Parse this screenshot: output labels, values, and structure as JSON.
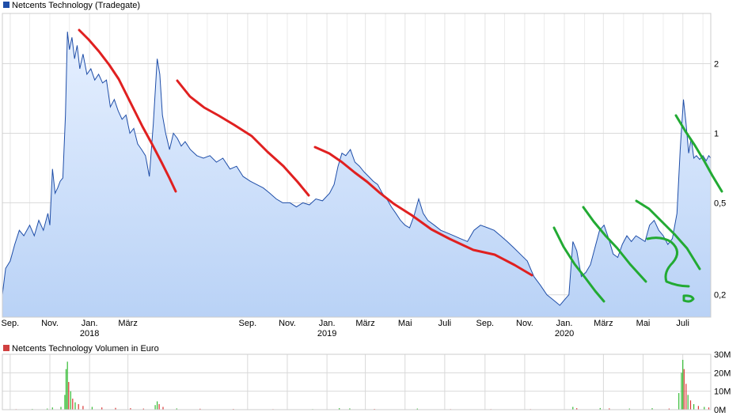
{
  "chart_data": [
    {
      "type": "area",
      "title": "Netcents Technology (Tradegate)",
      "legend": "Netcents Technology (Tradegate)",
      "legend_placement": "top-left",
      "colors": {
        "line": "#1f4ea8",
        "fill_top": "#e6f0ff",
        "fill_bottom": "#b9d2f6",
        "legend_swatch": "#1f4ea8",
        "grid": "#d9d9d9",
        "annotation_red": "#e02020",
        "annotation_green": "#22aa33"
      },
      "y_scale": "log",
      "ylim": [
        0.16,
        3.3
      ],
      "yticks": [
        {
          "value": 2,
          "label": "2"
        },
        {
          "value": 1,
          "label": "1"
        },
        {
          "value": 0.5,
          "label": "0,5"
        },
        {
          "value": 0.2,
          "label": "0,2"
        }
      ],
      "xlim": [
        "2017-08-20",
        "2020-08-13"
      ],
      "xticks": [
        {
          "date": "2017-09-01",
          "label": "Sep."
        },
        {
          "date": "2017-11-01",
          "label": "Nov."
        },
        {
          "date": "2018-01-01",
          "label": "Jan.",
          "year": "2018"
        },
        {
          "date": "2018-03-01",
          "label": "März"
        },
        {
          "date": "2018-09-01",
          "label": "Sep."
        },
        {
          "date": "2018-11-01",
          "label": "Nov."
        },
        {
          "date": "2019-01-01",
          "label": "Jan.",
          "year": "2019"
        },
        {
          "date": "2019-03-01",
          "label": "März"
        },
        {
          "date": "2019-05-01",
          "label": "Mai"
        },
        {
          "date": "2019-07-01",
          "label": "Juli"
        },
        {
          "date": "2019-09-01",
          "label": "Sep."
        },
        {
          "date": "2019-11-01",
          "label": "Nov."
        },
        {
          "date": "2020-01-01",
          "label": "Jan.",
          "year": "2020"
        },
        {
          "date": "2020-03-01",
          "label": "März"
        },
        {
          "date": "2020-05-01",
          "label": "Mai"
        },
        {
          "date": "2020-07-01",
          "label": "Juli"
        }
      ],
      "grid": true,
      "series": [
        {
          "name": "Netcents Technology (Tradegate)",
          "points": [
            [
              "2017-08-20",
              0.2
            ],
            [
              "2017-08-25",
              0.26
            ],
            [
              "2017-09-01",
              0.28
            ],
            [
              "2017-09-08",
              0.33
            ],
            [
              "2017-09-15",
              0.38
            ],
            [
              "2017-09-22",
              0.36
            ],
            [
              "2017-10-01",
              0.4
            ],
            [
              "2017-10-08",
              0.36
            ],
            [
              "2017-10-15",
              0.42
            ],
            [
              "2017-10-22",
              0.38
            ],
            [
              "2017-10-29",
              0.45
            ],
            [
              "2017-11-01",
              0.4
            ],
            [
              "2017-11-05",
              0.7
            ],
            [
              "2017-11-09",
              0.55
            ],
            [
              "2017-11-13",
              0.58
            ],
            [
              "2017-11-17",
              0.62
            ],
            [
              "2017-11-21",
              0.64
            ],
            [
              "2017-11-25",
              1.2
            ],
            [
              "2017-11-28",
              2.75
            ],
            [
              "2017-12-01",
              2.3
            ],
            [
              "2017-12-05",
              2.6
            ],
            [
              "2017-12-09",
              2.1
            ],
            [
              "2017-12-13",
              2.4
            ],
            [
              "2017-12-17",
              1.9
            ],
            [
              "2017-12-22",
              2.2
            ],
            [
              "2017-12-28",
              1.8
            ],
            [
              "2018-01-03",
              1.9
            ],
            [
              "2018-01-09",
              1.7
            ],
            [
              "2018-01-15",
              1.8
            ],
            [
              "2018-01-21",
              1.65
            ],
            [
              "2018-01-27",
              1.7
            ],
            [
              "2018-02-02",
              1.3
            ],
            [
              "2018-02-08",
              1.4
            ],
            [
              "2018-02-14",
              1.25
            ],
            [
              "2018-02-20",
              1.15
            ],
            [
              "2018-02-26",
              1.2
            ],
            [
              "2018-03-04",
              1.0
            ],
            [
              "2018-03-10",
              1.05
            ],
            [
              "2018-03-16",
              0.9
            ],
            [
              "2018-03-22",
              0.85
            ],
            [
              "2018-03-28",
              0.8
            ],
            [
              "2018-04-03",
              0.65
            ],
            [
              "2018-04-09",
              1.1
            ],
            [
              "2018-04-15",
              2.1
            ],
            [
              "2018-04-19",
              1.8
            ],
            [
              "2018-04-23",
              1.2
            ],
            [
              "2018-04-28",
              1.0
            ],
            [
              "2018-05-04",
              0.85
            ],
            [
              "2018-05-10",
              1.0
            ],
            [
              "2018-05-16",
              0.95
            ],
            [
              "2018-05-22",
              0.88
            ],
            [
              "2018-05-28",
              0.92
            ],
            [
              "2018-06-05",
              0.85
            ],
            [
              "2018-06-15",
              0.8
            ],
            [
              "2018-06-25",
              0.78
            ],
            [
              "2018-07-05",
              0.8
            ],
            [
              "2018-07-15",
              0.75
            ],
            [
              "2018-07-25",
              0.78
            ],
            [
              "2018-08-05",
              0.7
            ],
            [
              "2018-08-15",
              0.72
            ],
            [
              "2018-08-25",
              0.65
            ],
            [
              "2018-09-05",
              0.62
            ],
            [
              "2018-09-15",
              0.6
            ],
            [
              "2018-09-25",
              0.58
            ],
            [
              "2018-10-05",
              0.55
            ],
            [
              "2018-10-15",
              0.52
            ],
            [
              "2018-10-25",
              0.5
            ],
            [
              "2018-11-05",
              0.5
            ],
            [
              "2018-11-15",
              0.48
            ],
            [
              "2018-11-25",
              0.5
            ],
            [
              "2018-12-05",
              0.49
            ],
            [
              "2018-12-15",
              0.52
            ],
            [
              "2018-12-25",
              0.51
            ],
            [
              "2019-01-05",
              0.55
            ],
            [
              "2019-01-12",
              0.6
            ],
            [
              "2019-01-18",
              0.72
            ],
            [
              "2019-01-24",
              0.82
            ],
            [
              "2019-01-30",
              0.8
            ],
            [
              "2019-02-06",
              0.85
            ],
            [
              "2019-02-13",
              0.75
            ],
            [
              "2019-02-20",
              0.72
            ],
            [
              "2019-02-27",
              0.68
            ],
            [
              "2019-03-06",
              0.65
            ],
            [
              "2019-03-13",
              0.62
            ],
            [
              "2019-03-20",
              0.6
            ],
            [
              "2019-03-27",
              0.55
            ],
            [
              "2019-04-03",
              0.52
            ],
            [
              "2019-04-10",
              0.48
            ],
            [
              "2019-04-17",
              0.45
            ],
            [
              "2019-04-24",
              0.42
            ],
            [
              "2019-05-01",
              0.4
            ],
            [
              "2019-05-08",
              0.39
            ],
            [
              "2019-05-15",
              0.44
            ],
            [
              "2019-05-22",
              0.52
            ],
            [
              "2019-05-29",
              0.45
            ],
            [
              "2019-06-05",
              0.42
            ],
            [
              "2019-06-15",
              0.4
            ],
            [
              "2019-06-25",
              0.38
            ],
            [
              "2019-07-05",
              0.37
            ],
            [
              "2019-07-15",
              0.36
            ],
            [
              "2019-07-25",
              0.35
            ],
            [
              "2019-08-05",
              0.34
            ],
            [
              "2019-08-15",
              0.38
            ],
            [
              "2019-08-25",
              0.4
            ],
            [
              "2019-09-05",
              0.39
            ],
            [
              "2019-09-15",
              0.38
            ],
            [
              "2019-09-25",
              0.36
            ],
            [
              "2019-10-05",
              0.34
            ],
            [
              "2019-10-15",
              0.32
            ],
            [
              "2019-10-25",
              0.3
            ],
            [
              "2019-11-05",
              0.28
            ],
            [
              "2019-11-15",
              0.24
            ],
            [
              "2019-11-25",
              0.22
            ],
            [
              "2019-12-05",
              0.2
            ],
            [
              "2019-12-15",
              0.19
            ],
            [
              "2019-12-25",
              0.18
            ],
            [
              "2020-01-01",
              0.19
            ],
            [
              "2020-01-08",
              0.2
            ],
            [
              "2020-01-14",
              0.34
            ],
            [
              "2020-01-20",
              0.31
            ],
            [
              "2020-01-27",
              0.24
            ],
            [
              "2020-02-03",
              0.25
            ],
            [
              "2020-02-10",
              0.27
            ],
            [
              "2020-02-17",
              0.32
            ],
            [
              "2020-02-24",
              0.38
            ],
            [
              "2020-03-02",
              0.4
            ],
            [
              "2020-03-09",
              0.35
            ],
            [
              "2020-03-16",
              0.3
            ],
            [
              "2020-03-23",
              0.29
            ],
            [
              "2020-03-30",
              0.33
            ],
            [
              "2020-04-06",
              0.36
            ],
            [
              "2020-04-13",
              0.34
            ],
            [
              "2020-04-20",
              0.36
            ],
            [
              "2020-04-27",
              0.35
            ],
            [
              "2020-05-04",
              0.34
            ],
            [
              "2020-05-11",
              0.4
            ],
            [
              "2020-05-18",
              0.42
            ],
            [
              "2020-05-25",
              0.38
            ],
            [
              "2020-06-01",
              0.36
            ],
            [
              "2020-06-08",
              0.33
            ],
            [
              "2020-06-15",
              0.35
            ],
            [
              "2020-06-22",
              0.45
            ],
            [
              "2020-06-27",
              0.85
            ],
            [
              "2020-07-02",
              1.4
            ],
            [
              "2020-07-06",
              1.1
            ],
            [
              "2020-07-10",
              0.82
            ],
            [
              "2020-07-14",
              0.95
            ],
            [
              "2020-07-18",
              0.78
            ],
            [
              "2020-07-22",
              0.8
            ],
            [
              "2020-07-27",
              0.77
            ],
            [
              "2020-08-01",
              0.8
            ],
            [
              "2020-08-06",
              0.76
            ],
            [
              "2020-08-10",
              0.8
            ],
            [
              "2020-08-13",
              0.78
            ]
          ]
        }
      ]
    },
    {
      "type": "bar",
      "title": "Netcents Technology Volumen in Euro",
      "legend": "Netcents Technology Volumen in Euro",
      "legend_placement": "top-left",
      "colors": {
        "legend_swatch": "#d04040",
        "up": "#33bb33",
        "down": "#dd3333",
        "grid": "#d9d9d9"
      },
      "ylim": [
        0,
        30000000
      ],
      "yticks": [
        {
          "value": 30000000,
          "label": "30M"
        },
        {
          "value": 20000000,
          "label": "20M"
        },
        {
          "value": 10000000,
          "label": "10M"
        },
        {
          "value": 0,
          "label": "0M"
        }
      ],
      "grid": true,
      "bars": [
        [
          "2017-09-10",
          300000,
          "down"
        ],
        [
          "2017-10-05",
          400000,
          "up"
        ],
        [
          "2017-10-28",
          600000,
          "up"
        ],
        [
          "2017-11-05",
          1200000,
          "up"
        ],
        [
          "2017-11-18",
          1500000,
          "up"
        ],
        [
          "2017-11-24",
          8000000,
          "up"
        ],
        [
          "2017-11-26",
          22000000,
          "up"
        ],
        [
          "2017-11-28",
          26000000,
          "up"
        ],
        [
          "2017-11-30",
          15000000,
          "down"
        ],
        [
          "2017-12-03",
          10000000,
          "up"
        ],
        [
          "2017-12-06",
          6000000,
          "down"
        ],
        [
          "2017-12-10",
          4000000,
          "up"
        ],
        [
          "2017-12-15",
          3000000,
          "down"
        ],
        [
          "2017-12-22",
          2000000,
          "down"
        ],
        [
          "2018-01-05",
          1500000,
          "up"
        ],
        [
          "2018-01-20",
          1200000,
          "down"
        ],
        [
          "2018-02-10",
          1000000,
          "down"
        ],
        [
          "2018-03-05",
          800000,
          "down"
        ],
        [
          "2018-03-25",
          600000,
          "down"
        ],
        [
          "2018-04-12",
          2500000,
          "up"
        ],
        [
          "2018-04-15",
          4500000,
          "up"
        ],
        [
          "2018-04-18",
          3000000,
          "down"
        ],
        [
          "2018-04-24",
          1500000,
          "down"
        ],
        [
          "2018-05-15",
          700000,
          "up"
        ],
        [
          "2018-06-20",
          500000,
          "down"
        ],
        [
          "2018-08-10",
          400000,
          "down"
        ],
        [
          "2018-10-10",
          300000,
          "down"
        ],
        [
          "2018-12-10",
          300000,
          "up"
        ],
        [
          "2019-01-20",
          800000,
          "up"
        ],
        [
          "2019-02-05",
          700000,
          "up"
        ],
        [
          "2019-03-15",
          400000,
          "down"
        ],
        [
          "2019-05-20",
          600000,
          "up"
        ],
        [
          "2019-07-10",
          300000,
          "down"
        ],
        [
          "2019-09-10",
          300000,
          "down"
        ],
        [
          "2019-11-10",
          300000,
          "down"
        ],
        [
          "2020-01-14",
          1500000,
          "up"
        ],
        [
          "2020-01-20",
          800000,
          "down"
        ],
        [
          "2020-02-25",
          900000,
          "up"
        ],
        [
          "2020-03-10",
          700000,
          "down"
        ],
        [
          "2020-04-10",
          600000,
          "up"
        ],
        [
          "2020-05-15",
          800000,
          "up"
        ],
        [
          "2020-06-10",
          600000,
          "down"
        ],
        [
          "2020-06-25",
          9000000,
          "up"
        ],
        [
          "2020-06-29",
          20000000,
          "up"
        ],
        [
          "2020-07-01",
          27000000,
          "up"
        ],
        [
          "2020-07-03",
          22000000,
          "down"
        ],
        [
          "2020-07-06",
          14000000,
          "down"
        ],
        [
          "2020-07-09",
          8000000,
          "up"
        ],
        [
          "2020-07-13",
          5000000,
          "down"
        ],
        [
          "2020-07-18",
          3000000,
          "up"
        ],
        [
          "2020-07-25",
          2000000,
          "down"
        ],
        [
          "2020-08-03",
          1500000,
          "up"
        ],
        [
          "2020-08-10",
          1200000,
          "down"
        ]
      ]
    }
  ]
}
